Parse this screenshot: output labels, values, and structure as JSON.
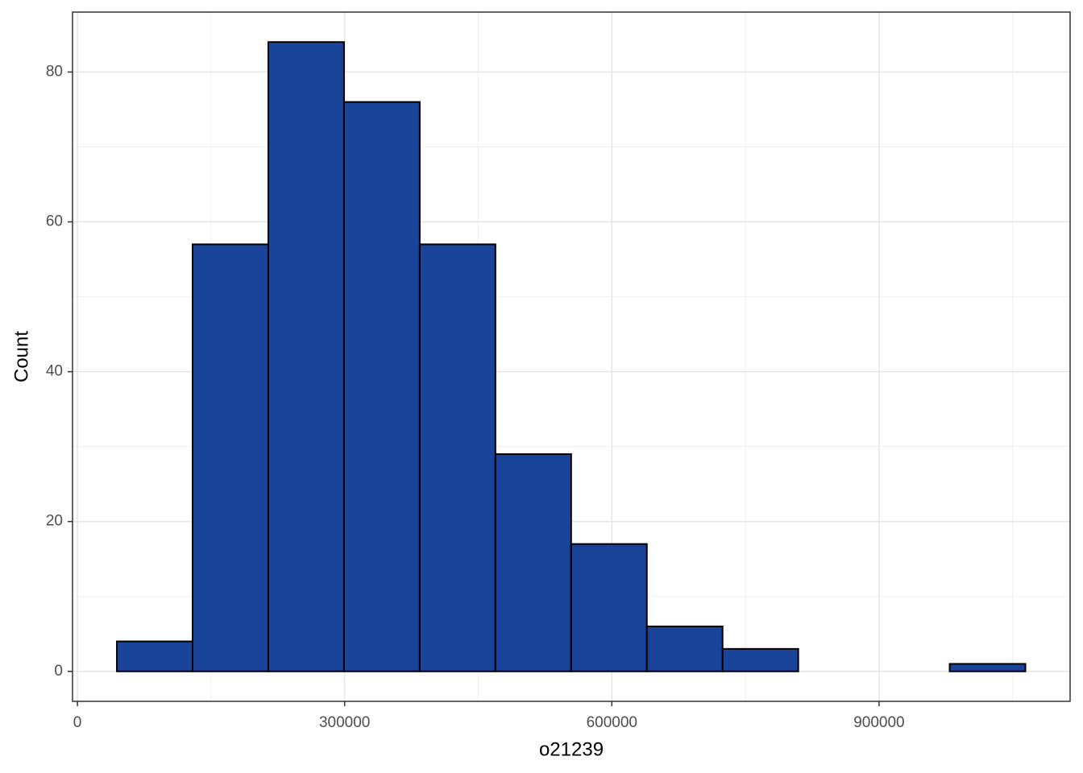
{
  "chart_data": {
    "type": "histogram",
    "x_label": "o21239",
    "y_label": "Count",
    "bins": [
      44300,
      129300,
      214300,
      299300,
      384300,
      469300,
      554300,
      639300,
      724300,
      809300,
      894300,
      979300,
      1064300
    ],
    "counts": [
      4,
      57,
      84,
      76,
      57,
      29,
      17,
      6,
      3,
      0,
      0,
      1
    ],
    "color": "#19449a",
    "edge_color": "#000000",
    "xlim": [
      -5500,
      1114500
    ],
    "ylim": [
      -4,
      88
    ],
    "xticks": [
      0,
      300000,
      600000,
      900000
    ],
    "yticks": [
      0,
      20,
      40,
      60,
      80
    ],
    "grid": true
  }
}
